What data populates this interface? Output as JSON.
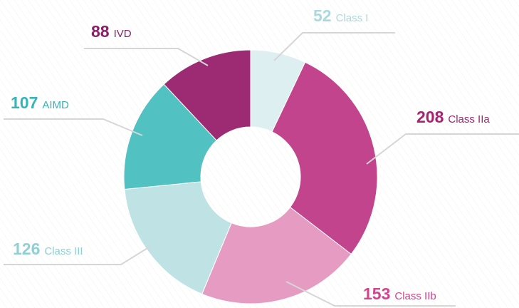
{
  "chart_data": {
    "type": "donut",
    "categories": [
      "Class I",
      "Class IIa",
      "Class IIb",
      "Class III",
      "AIMD",
      "IVD"
    ],
    "values": [
      52,
      208,
      153,
      126,
      107,
      88
    ],
    "colors": [
      "#ddeff1",
      "#c2448c",
      "#e69cc2",
      "#bfe3e5",
      "#52c1c2",
      "#9c2b74"
    ],
    "label_colors": [
      "#aad9dd",
      "#a8226f",
      "#d2448e",
      "#8fd0d4",
      "#38b3b6",
      "#8b1f66"
    ]
  }
}
